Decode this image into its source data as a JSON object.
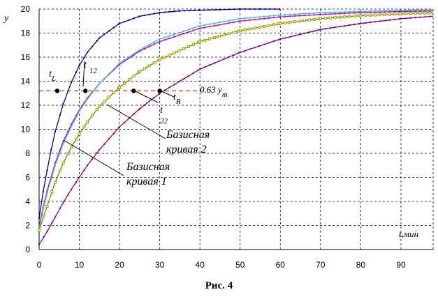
{
  "figure": {
    "caption": "Рис. 4"
  },
  "chart_data": {
    "type": "line",
    "xlabel": "t,мин",
    "ylabel": "y",
    "xlim": [
      0,
      98
    ],
    "ylim": [
      0,
      20
    ],
    "xticks": [
      0,
      10,
      20,
      30,
      40,
      50,
      60,
      70,
      80,
      90
    ],
    "yticks": [
      0,
      2,
      4,
      6,
      8,
      10,
      12,
      14,
      16,
      18,
      20
    ],
    "grid": true,
    "threshold": {
      "y": 13.2,
      "label": "0.63 y",
      "label_sub": "m",
      "color": "#cc0000"
    },
    "series": [
      {
        "color": "#00008b",
        "marker": "dot",
        "x": [
          0,
          1,
          2,
          3,
          4,
          6,
          8,
          10,
          12,
          15,
          20,
          25,
          30,
          35,
          40,
          45,
          50,
          55,
          60
        ],
        "values": [
          2.6,
          4.8,
          6.6,
          8.3,
          9.8,
          12.1,
          13.9,
          15.3,
          16.4,
          17.6,
          18.8,
          19.4,
          19.7,
          19.85,
          19.9,
          19.95,
          20,
          20,
          20
        ]
      },
      {
        "color": "#c000c0",
        "marker": "dot",
        "x": [
          0,
          1,
          2,
          4,
          6,
          8,
          10,
          12,
          15,
          20,
          25,
          30,
          40,
          50,
          60,
          70,
          80,
          90,
          98
        ],
        "values": [
          1.9,
          3.5,
          4.9,
          7.2,
          9.0,
          10.4,
          11.6,
          12.6,
          13.8,
          15.4,
          16.5,
          17.3,
          18.4,
          19.0,
          19.35,
          19.55,
          19.7,
          19.8,
          19.85
        ]
      },
      {
        "color": "#40c0c0",
        "marker": "dot",
        "x": [
          0,
          1,
          2,
          4,
          6,
          8,
          10,
          12,
          15,
          20,
          25,
          30,
          40,
          50,
          60,
          70,
          80,
          90,
          98
        ],
        "values": [
          1.7,
          3.3,
          4.7,
          7.0,
          8.8,
          10.2,
          11.5,
          12.5,
          13.8,
          15.5,
          16.6,
          17.5,
          18.6,
          19.2,
          19.5,
          19.7,
          19.8,
          19.9,
          19.95
        ]
      },
      {
        "color": "#808000",
        "marker": "square",
        "x": [
          0,
          2,
          4,
          6,
          8,
          10,
          12,
          15,
          20,
          25,
          30,
          40,
          50,
          60,
          70,
          80,
          90,
          98
        ],
        "values": [
          1.6,
          3.6,
          5.6,
          7.2,
          8.5,
          9.6,
          10.6,
          11.9,
          13.5,
          14.8,
          15.8,
          17.3,
          18.2,
          18.8,
          19.2,
          19.45,
          19.6,
          19.7
        ]
      },
      {
        "color": "#800080",
        "marker": "dot",
        "x": [
          0,
          2,
          4,
          6,
          8,
          10,
          12,
          15,
          20,
          25,
          30,
          40,
          50,
          60,
          70,
          80,
          90,
          98
        ],
        "values": [
          0.4,
          1.5,
          2.7,
          3.9,
          5.0,
          6.0,
          7.0,
          8.3,
          10.2,
          11.7,
          13.0,
          15.0,
          16.4,
          17.5,
          18.3,
          18.8,
          19.2,
          19.4
        ]
      }
    ],
    "points": [
      {
        "label": "t",
        "sub": "L",
        "x": 4.5,
        "y": 13.2
      },
      {
        "label": "t",
        "sub": "12",
        "x": 11.5,
        "y": 13.2
      },
      {
        "label": "t",
        "sub": "22",
        "x": 23.5,
        "y": 13.2
      },
      {
        "label": "t",
        "sub": "R",
        "x": 30,
        "y": 13.2
      }
    ],
    "annotations": [
      {
        "line1": "Базисная",
        "line2": "кривая 2"
      },
      {
        "line1": "Базисная",
        "line2": "кривая 1"
      }
    ]
  }
}
